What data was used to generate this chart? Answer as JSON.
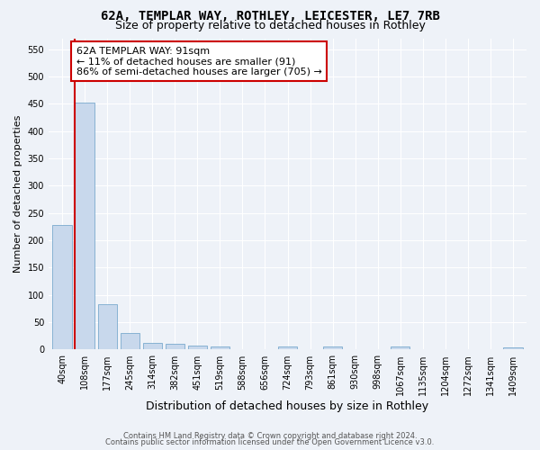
{
  "title1": "62A, TEMPLAR WAY, ROTHLEY, LEICESTER, LE7 7RB",
  "title2": "Size of property relative to detached houses in Rothley",
  "xlabel": "Distribution of detached houses by size in Rothley",
  "ylabel": "Number of detached properties",
  "categories": [
    "40sqm",
    "108sqm",
    "177sqm",
    "245sqm",
    "314sqm",
    "382sqm",
    "451sqm",
    "519sqm",
    "588sqm",
    "656sqm",
    "724sqm",
    "793sqm",
    "861sqm",
    "930sqm",
    "998sqm",
    "1067sqm",
    "1135sqm",
    "1204sqm",
    "1272sqm",
    "1341sqm",
    "1409sqm"
  ],
  "values": [
    228,
    453,
    83,
    31,
    13,
    10,
    7,
    5,
    0,
    0,
    5,
    0,
    6,
    0,
    0,
    5,
    0,
    0,
    0,
    0,
    4
  ],
  "bar_color": "#c8d8ec",
  "bar_edge_color": "#7aaace",
  "highlight_bar_color": "#b8c8e0",
  "highlight_color": "#cc0000",
  "annotation_text": "62A TEMPLAR WAY: 91sqm\n← 11% of detached houses are smaller (91)\n86% of semi-detached houses are larger (705) →",
  "annotation_box_color": "#ffffff",
  "annotation_box_edge": "#cc0000",
  "ylim": [
    0,
    570
  ],
  "yticks": [
    0,
    50,
    100,
    150,
    200,
    250,
    300,
    350,
    400,
    450,
    500,
    550
  ],
  "footer1": "Contains HM Land Registry data © Crown copyright and database right 2024.",
  "footer2": "Contains public sector information licensed under the Open Government Licence v3.0.",
  "bg_color": "#eef2f8",
  "plot_bg_color": "#eef2f8",
  "grid_color": "#ffffff",
  "title1_fontsize": 10,
  "title2_fontsize": 9,
  "tick_fontsize": 7,
  "ylabel_fontsize": 8,
  "xlabel_fontsize": 9,
  "annotation_fontsize": 8,
  "footer_fontsize": 6
}
